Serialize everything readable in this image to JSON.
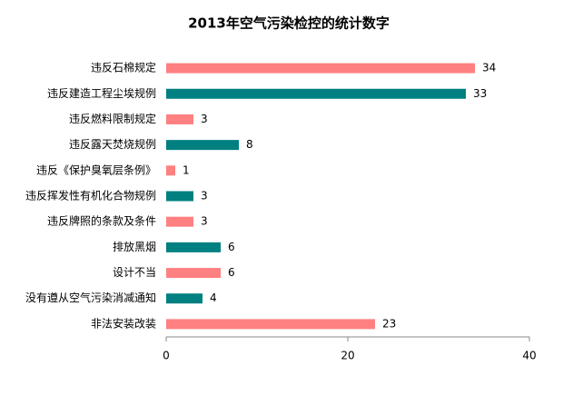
{
  "chart_data": {
    "type": "bar",
    "orientation": "horizontal",
    "title": "2013年空气污染检控的统计数字",
    "categories": [
      "违反石棉规定",
      "违反建造工程尘埃规例",
      "违反燃料限制规定",
      "违反露天焚烧规例",
      "违反《保护臭氧层条例》",
      "违反挥发性有机化合物规例",
      "违反牌照的条款及条件",
      "排放黑烟",
      "设计不当",
      "没有遵从空气污染消减通知",
      "非法安装改装"
    ],
    "values": [
      34,
      33,
      3,
      8,
      1,
      3,
      3,
      6,
      6,
      4,
      23
    ],
    "colors": [
      "#ff8080",
      "#008080",
      "#ff8080",
      "#008080",
      "#ff8080",
      "#008080",
      "#ff8080",
      "#008080",
      "#ff8080",
      "#008080",
      "#ff8080"
    ],
    "xlim": [
      0,
      40
    ],
    "xticks": [
      0,
      20,
      40
    ]
  }
}
